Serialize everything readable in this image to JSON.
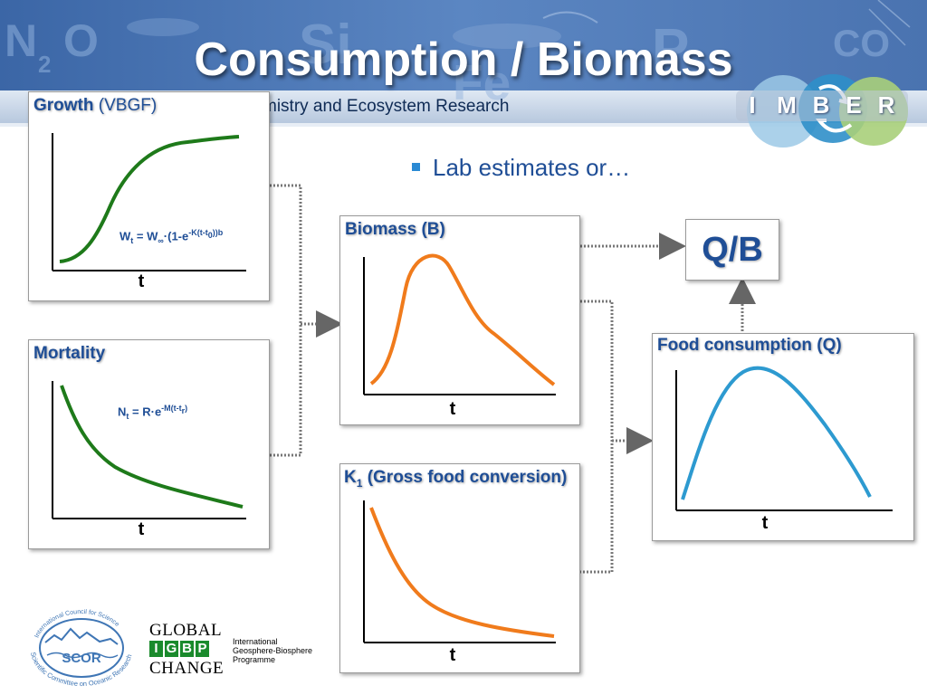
{
  "header": {
    "title": "Consumption / Biomass",
    "banner_subtitle": "mistry and Ecosystem Research",
    "banner_letters": [
      "N",
      "2",
      "O",
      "Si",
      "Fe",
      "P",
      "CO"
    ],
    "imber_letters": [
      "I",
      "M",
      "B",
      "E",
      "R"
    ]
  },
  "panels": {
    "growth": {
      "label": "Growth",
      "label_sub": "(VBGF)",
      "axis_label": "t",
      "equation": {
        "w": "W",
        "t": "t",
        "eq_w": " = W",
        "inf": "∞",
        "mid": "·(1-e",
        "exp": "-K(t-t",
        "exp0": "0",
        "exp_end": "))",
        "b": "b"
      }
    },
    "mortality": {
      "label": "Mortality",
      "axis_label": "t",
      "equation": {
        "n": "N",
        "t": "t",
        "eq_r": " = R",
        "mid": "·e",
        "exp": "-M(t-t",
        "expr": "r",
        "exp_end": ")"
      }
    },
    "biomass": {
      "label": "Biomass (B)",
      "axis_label": "t"
    },
    "conversion": {
      "label_k": "K",
      "label_sub": "1",
      "label_rest": " (Gross food conversion)",
      "axis_label": "t"
    },
    "food": {
      "label": "Food consumption (Q)",
      "axis_label": "t"
    }
  },
  "bullet": {
    "text": "Lab estimates or…"
  },
  "ratio_box": {
    "text": "Q/B"
  },
  "logos": {
    "scor": {
      "acronym": "SCOR",
      "top_text": "International Council for Science",
      "bottom_text": "Scientific Committee on Oceanic Research"
    },
    "igbp": {
      "global": "GLOBAL",
      "letters": [
        "I",
        "G",
        "B",
        "P"
      ],
      "change": "CHANGE",
      "lines": [
        "International",
        "Geosphere-Biosphere",
        "Programme"
      ]
    }
  },
  "colors": {
    "title_blue": "#1f4e96",
    "green_curve": "#1e7a1a",
    "orange_curve": "#f07b1c",
    "blue_curve": "#2d9ad0",
    "igbp_green": "#1a8a2c"
  }
}
